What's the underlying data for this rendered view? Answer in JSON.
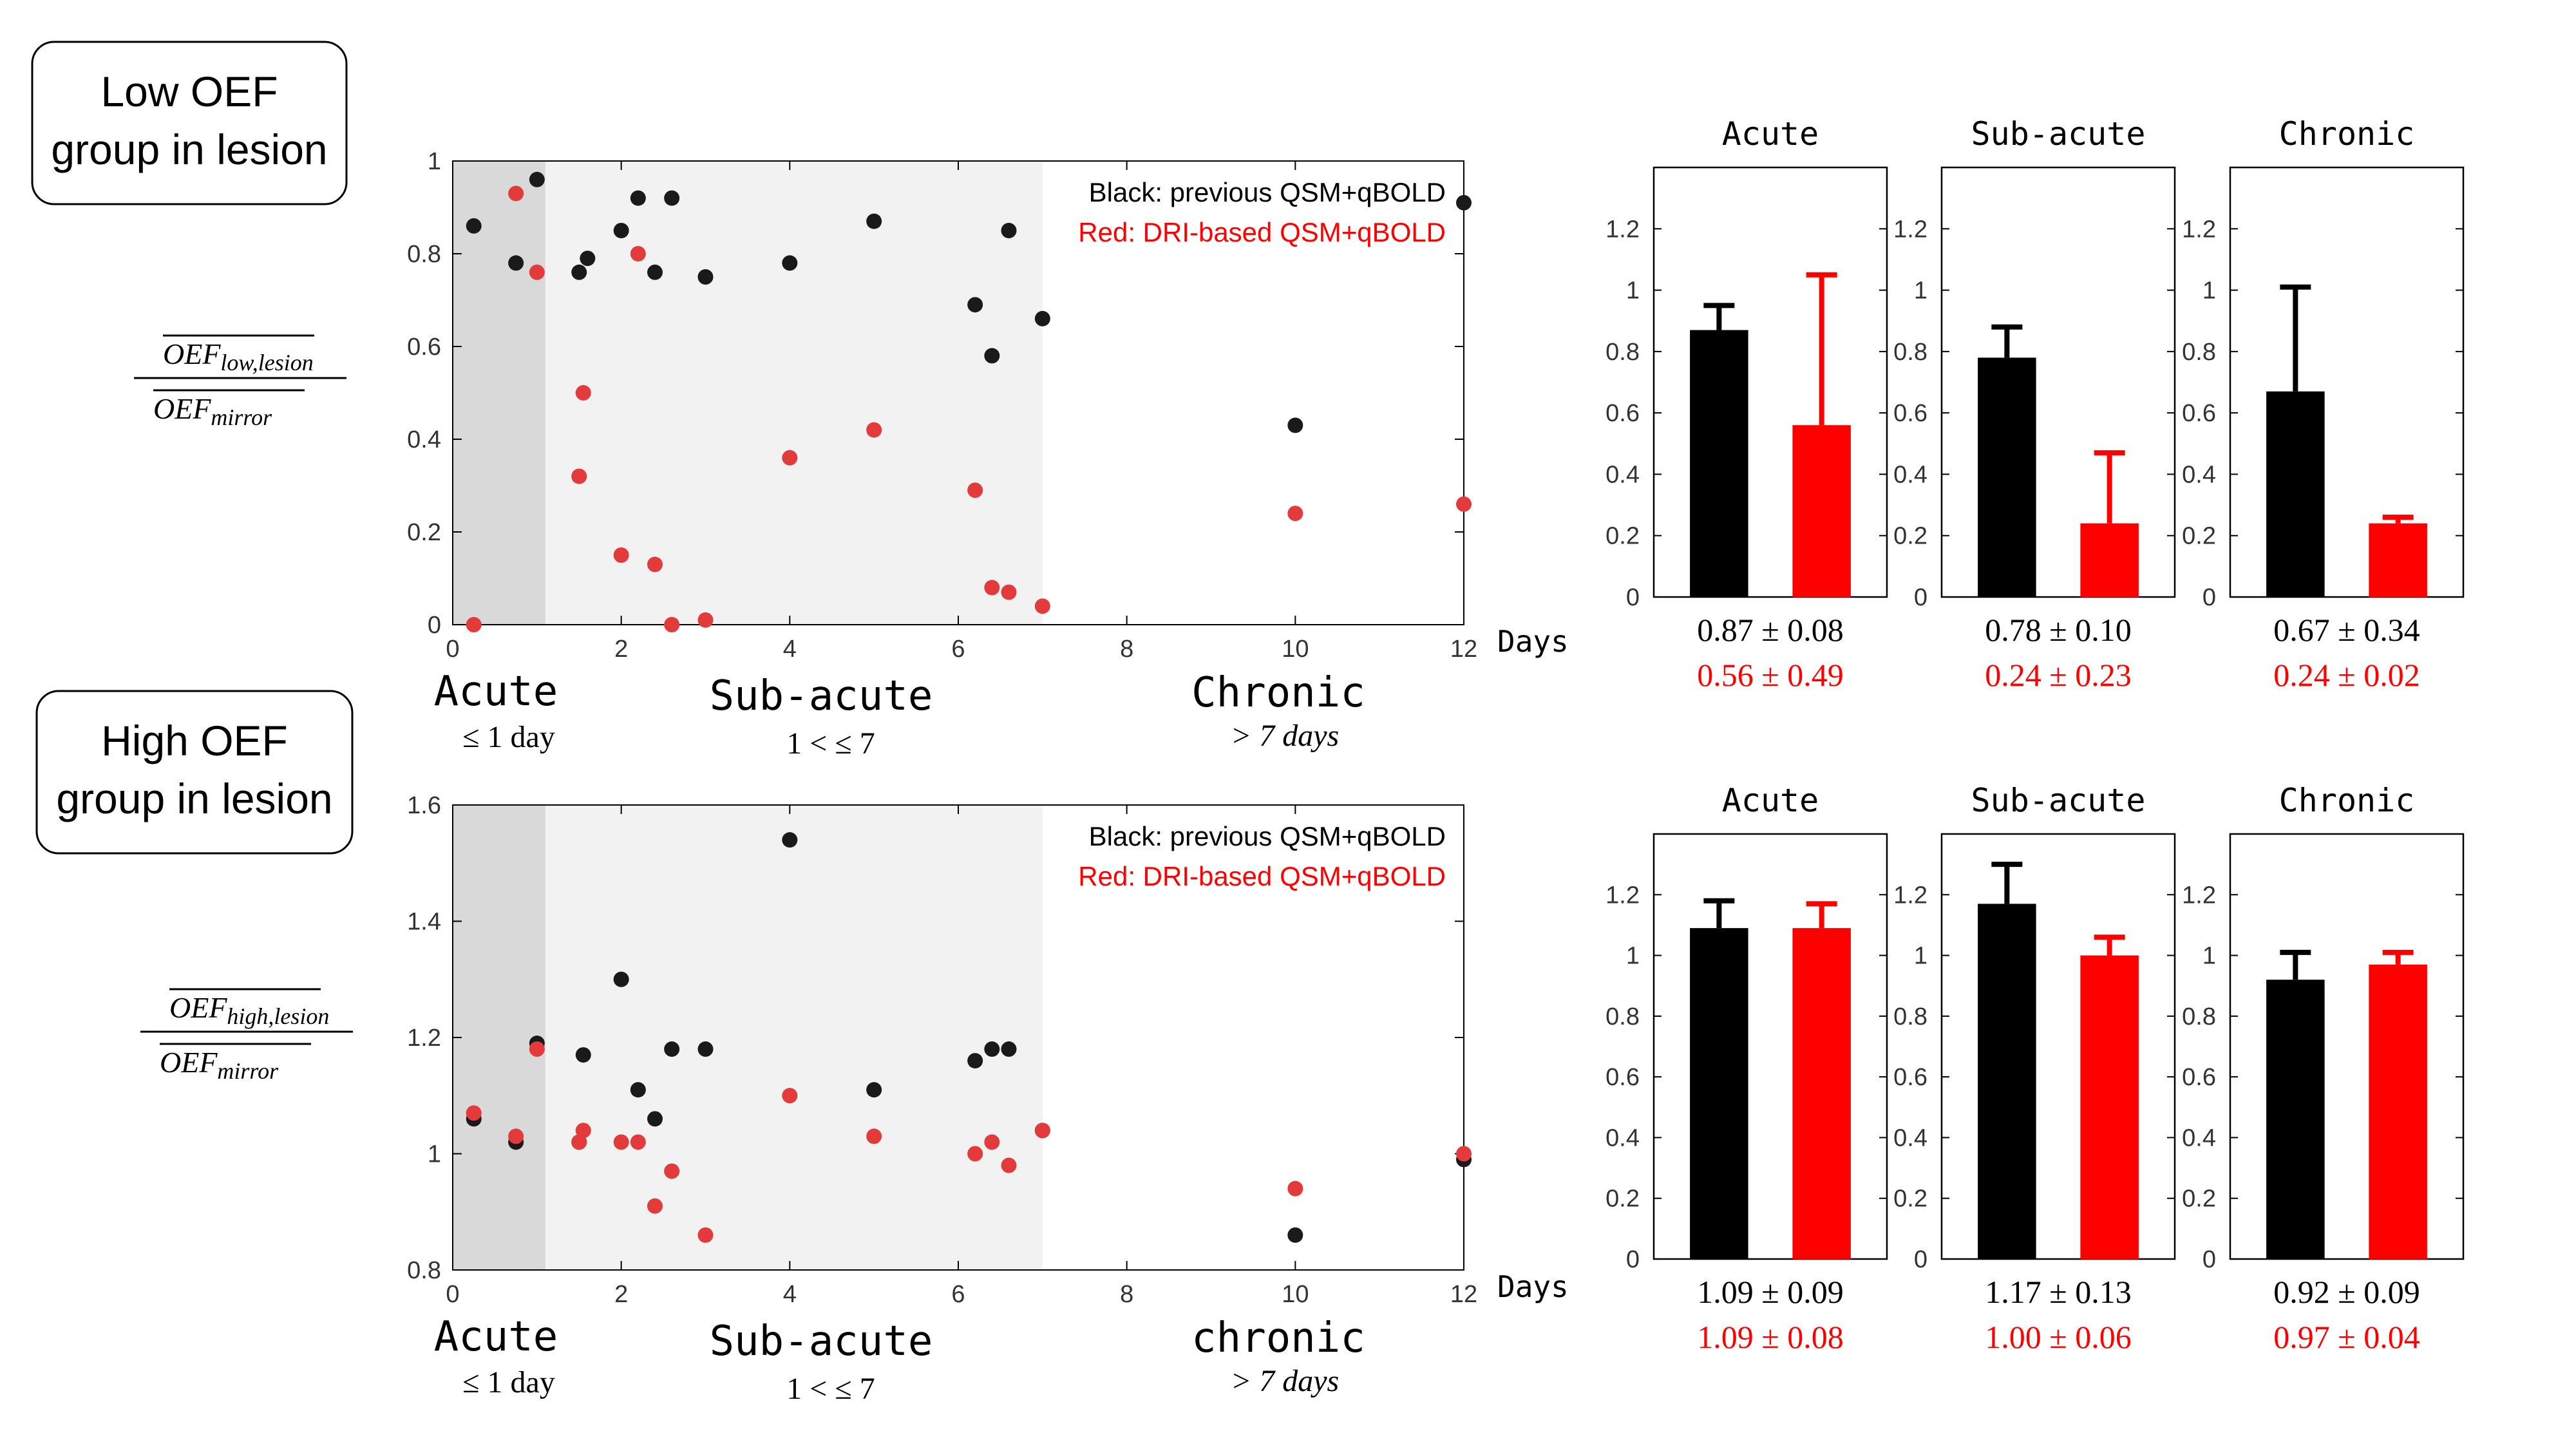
{
  "colors": {
    "black_series": "#000000",
    "red_series": "#ff0000",
    "acute_shade": "#d9d9d9",
    "subacute_shade": "#f2f2f2"
  },
  "groups": [
    {
      "label": "Low OEF\ngroup in lesion",
      "y_label_num": "OEF",
      "y_label_num_sub": "low,lesion",
      "y_label_den": "OEF",
      "y_label_den_sub": "mirror"
    },
    {
      "label": "High OEF\ngroup in lesion",
      "y_label_num": "OEF",
      "y_label_num_sub": "high,lesion",
      "y_label_den": "OEF",
      "y_label_den_sub": "mirror"
    }
  ],
  "x_unit": "Days",
  "stages_top": {
    "acute": "Acute",
    "acute_range": "≤ 1 day",
    "subacute": "Sub-acute",
    "subacute_range": "1 < ≤ 7",
    "chronic": "Chronic",
    "chronic_range": "> 7 days"
  },
  "stages_bottom": {
    "acute": "Acute",
    "acute_range": "≤ 1 day",
    "subacute": "Sub-acute",
    "subacute_range": "1 < ≤ 7",
    "chronic": "chronic",
    "chronic_range": "> 7 days"
  },
  "chart_data": [
    {
      "type": "scatter",
      "title": "Low OEF group in lesion",
      "xlabel": "Days",
      "ylabel": "OEF_low,lesion / OEF_mirror",
      "xlim": [
        0,
        12
      ],
      "ylim": [
        0,
        1
      ],
      "xticks": [
        0,
        2,
        4,
        6,
        8,
        10,
        12
      ],
      "yticks": [
        0,
        0.2,
        0.4,
        0.6,
        0.8,
        1
      ],
      "ytick_labels": [
        "0",
        "0.2",
        "0.4",
        "0.6",
        "0.8",
        "1"
      ],
      "legend": [
        "Black: previous QSM+qBOLD",
        "Red: DRI-based QSM+qBOLD"
      ],
      "legend_position": "top-right",
      "series": [
        {
          "name": "previous QSM+qBOLD",
          "color": "black",
          "x": [
            0.25,
            0.75,
            1.0,
            1.5,
            1.6,
            2.0,
            2.2,
            2.4,
            2.6,
            3.0,
            4.0,
            5.0,
            6.2,
            6.4,
            6.6,
            7.0,
            10.0,
            12.0
          ],
          "y": [
            0.86,
            0.78,
            0.96,
            0.76,
            0.79,
            0.85,
            0.92,
            0.76,
            0.92,
            0.75,
            0.78,
            0.87,
            0.69,
            0.58,
            0.85,
            0.66,
            0.43,
            0.91
          ]
        },
        {
          "name": "DRI-based QSM+qBOLD",
          "color": "red",
          "x": [
            0.25,
            0.75,
            1.0,
            1.5,
            1.55,
            2.0,
            2.2,
            2.4,
            2.6,
            3.0,
            4.0,
            5.0,
            6.2,
            6.4,
            6.6,
            7.0,
            10.0,
            12.0
          ],
          "y": [
            0.0,
            0.93,
            0.76,
            0.32,
            0.5,
            0.15,
            0.8,
            0.13,
            0.0,
            0.01,
            0.36,
            0.42,
            0.29,
            0.08,
            0.07,
            0.04,
            0.24,
            0.26
          ]
        }
      ],
      "stage_bands": [
        {
          "name": "Acute",
          "x_range": [
            0,
            1.1
          ]
        },
        {
          "name": "Sub-acute",
          "x_range": [
            1.1,
            7
          ]
        }
      ]
    },
    {
      "type": "bar",
      "title": "Acute",
      "group": "Low OEF group in lesion",
      "ylim": [
        0,
        1.4
      ],
      "yticks": [
        0,
        0.2,
        0.4,
        0.6,
        0.8,
        1,
        1.2
      ],
      "ytick_labels": [
        "0",
        "0.2",
        "0.4",
        "0.6",
        "0.8",
        "1",
        "1.2"
      ],
      "series": [
        {
          "name": "previous QSM+qBOLD",
          "color": "black",
          "value": 0.87,
          "error": 0.08,
          "label": "0.87 ± 0.08"
        },
        {
          "name": "DRI-based QSM+qBOLD",
          "color": "red",
          "value": 0.56,
          "error": 0.49,
          "label": "0.56 ± 0.49"
        }
      ]
    },
    {
      "type": "bar",
      "title": "Sub-acute",
      "group": "Low OEF group in lesion",
      "ylim": [
        0,
        1.4
      ],
      "yticks": [
        0,
        0.2,
        0.4,
        0.6,
        0.8,
        1,
        1.2
      ],
      "ytick_labels": [
        "0",
        "0.2",
        "0.4",
        "0.6",
        "0.8",
        "1",
        "1.2"
      ],
      "series": [
        {
          "name": "previous QSM+qBOLD",
          "color": "black",
          "value": 0.78,
          "error": 0.1,
          "label": "0.78 ± 0.10"
        },
        {
          "name": "DRI-based QSM+qBOLD",
          "color": "red",
          "value": 0.24,
          "error": 0.23,
          "label": "0.24 ± 0.23"
        }
      ]
    },
    {
      "type": "bar",
      "title": "Chronic",
      "group": "Low OEF group in lesion",
      "ylim": [
        0,
        1.4
      ],
      "yticks": [
        0,
        0.2,
        0.4,
        0.6,
        0.8,
        1,
        1.2
      ],
      "ytick_labels": [
        "0",
        "0.2",
        "0.4",
        "0.6",
        "0.8",
        "1",
        "1.2"
      ],
      "series": [
        {
          "name": "previous QSM+qBOLD",
          "color": "black",
          "value": 0.67,
          "error": 0.34,
          "label": "0.67 ± 0.34"
        },
        {
          "name": "DRI-based QSM+qBOLD",
          "color": "red",
          "value": 0.24,
          "error": 0.02,
          "label": "0.24 ± 0.02"
        }
      ]
    },
    {
      "type": "scatter",
      "title": "High OEF group in lesion",
      "xlabel": "Days",
      "ylabel": "OEF_high,lesion / OEF_mirror",
      "xlim": [
        0,
        12
      ],
      "ylim": [
        0.8,
        1.6
      ],
      "xticks": [
        0,
        2,
        4,
        6,
        8,
        10,
        12
      ],
      "yticks": [
        0.8,
        1,
        1.2,
        1.4,
        1.6
      ],
      "ytick_labels": [
        "0.8",
        "1",
        "1.2",
        "1.4",
        "1.6"
      ],
      "legend": [
        "Black: previous QSM+qBOLD",
        "Red: DRI-based QSM+qBOLD"
      ],
      "legend_position": "top-right",
      "series": [
        {
          "name": "previous QSM+qBOLD",
          "color": "black",
          "x": [
            0.25,
            0.75,
            1.0,
            1.5,
            1.55,
            2.0,
            2.2,
            2.4,
            2.6,
            3.0,
            4.0,
            5.0,
            6.2,
            6.4,
            6.6,
            7.0,
            10.0,
            12.0
          ],
          "y": [
            1.06,
            1.02,
            1.19,
            1.02,
            1.17,
            1.3,
            1.11,
            1.06,
            1.18,
            1.18,
            1.54,
            1.11,
            1.16,
            1.18,
            1.18,
            1.04,
            0.86,
            0.99
          ]
        },
        {
          "name": "DRI-based QSM+qBOLD",
          "color": "red",
          "x": [
            0.25,
            0.75,
            1.0,
            1.5,
            1.55,
            2.0,
            2.2,
            2.4,
            2.6,
            3.0,
            4.0,
            5.0,
            6.2,
            6.4,
            6.6,
            7.0,
            10.0,
            12.0
          ],
          "y": [
            1.07,
            1.03,
            1.18,
            1.02,
            1.04,
            1.02,
            1.02,
            0.91,
            0.97,
            0.86,
            1.1,
            1.03,
            1.0,
            1.02,
            0.98,
            1.04,
            0.94,
            1.0
          ]
        }
      ],
      "stage_bands": [
        {
          "name": "Acute",
          "x_range": [
            0,
            1.1
          ]
        },
        {
          "name": "Sub-acute",
          "x_range": [
            1.1,
            7
          ]
        }
      ]
    },
    {
      "type": "bar",
      "title": "Acute",
      "group": "High OEF group in lesion",
      "ylim": [
        0,
        1.4
      ],
      "yticks": [
        0,
        0.2,
        0.4,
        0.6,
        0.8,
        1,
        1.2
      ],
      "ytick_labels": [
        "0",
        "0.2",
        "0.4",
        "0.6",
        "0.8",
        "1",
        "1.2"
      ],
      "series": [
        {
          "name": "previous QSM+qBOLD",
          "color": "black",
          "value": 1.09,
          "error": 0.09,
          "label": "1.09 ± 0.09"
        },
        {
          "name": "DRI-based QSM+qBOLD",
          "color": "red",
          "value": 1.09,
          "error": 0.08,
          "label": "1.09 ± 0.08"
        }
      ]
    },
    {
      "type": "bar",
      "title": "Sub-acute",
      "group": "High OEF group in lesion",
      "ylim": [
        0,
        1.4
      ],
      "yticks": [
        0,
        0.2,
        0.4,
        0.6,
        0.8,
        1,
        1.2
      ],
      "ytick_labels": [
        "0",
        "0.2",
        "0.4",
        "0.6",
        "0.8",
        "1",
        "1.2"
      ],
      "series": [
        {
          "name": "previous QSM+qBOLD",
          "color": "black",
          "value": 1.17,
          "error": 0.13,
          "label": "1.17 ± 0.13"
        },
        {
          "name": "DRI-based QSM+qBOLD",
          "color": "red",
          "value": 1.0,
          "error": 0.06,
          "label": "1.00 ± 0.06"
        }
      ]
    },
    {
      "type": "bar",
      "title": "Chronic",
      "group": "High OEF group in lesion",
      "ylim": [
        0,
        1.4
      ],
      "yticks": [
        0,
        0.2,
        0.4,
        0.6,
        0.8,
        1,
        1.2
      ],
      "ytick_labels": [
        "0",
        "0.2",
        "0.4",
        "0.6",
        "0.8",
        "1",
        "1.2"
      ],
      "series": [
        {
          "name": "previous QSM+qBOLD",
          "color": "black",
          "value": 0.92,
          "error": 0.09,
          "label": "0.92 ± 0.09"
        },
        {
          "name": "DRI-based QSM+qBOLD",
          "color": "red",
          "value": 0.97,
          "error": 0.04,
          "label": "0.97 ± 0.04"
        }
      ]
    }
  ]
}
